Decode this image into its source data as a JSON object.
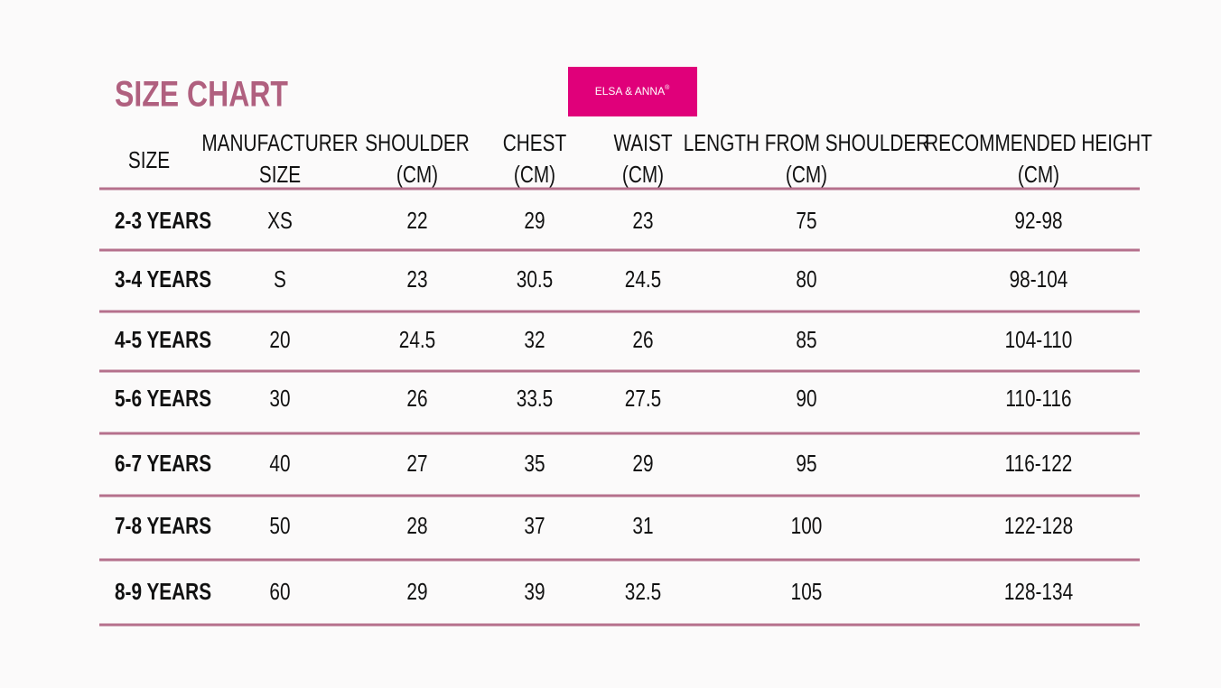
{
  "title": "SIZE CHART",
  "brand": {
    "name": "ELSA & ANNA",
    "mark": "®"
  },
  "table": {
    "header": [
      [
        "SIZE"
      ],
      [
        "MANUFACTURER",
        "SIZE"
      ],
      [
        "SHOULDER",
        "(CM)"
      ],
      [
        "CHEST",
        "(CM)"
      ],
      [
        "WAIST",
        "(CM)"
      ],
      [
        "LENGTH FROM SHOULDER",
        "(CM)"
      ],
      [
        "RECOMMENDED HEIGHT",
        "(CM)"
      ]
    ],
    "rows": [
      [
        "2-3 YEARS",
        "XS",
        "22",
        "29",
        "23",
        "75",
        "92-98"
      ],
      [
        "3-4 YEARS",
        "S",
        "23",
        "30.5",
        "24.5",
        "80",
        "98-104"
      ],
      [
        "4-5 YEARS",
        "20",
        "24.5",
        "32",
        "26",
        "85",
        "104-110"
      ],
      [
        "5-6 YEARS",
        "30",
        "26",
        "33.5",
        "27.5",
        "90",
        "110-116"
      ],
      [
        "6-7 YEARS",
        "40",
        "27",
        "35",
        "29",
        "95",
        "116-122"
      ],
      [
        "7-8 YEARS",
        "50",
        "28",
        "37",
        "31",
        "100",
        "122-128"
      ],
      [
        "8-9 YEARS",
        "60",
        "29",
        "39",
        "32.5",
        "105",
        "128-134"
      ]
    ]
  }
}
